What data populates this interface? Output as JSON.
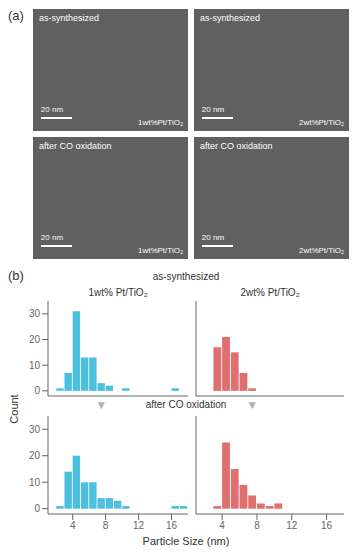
{
  "chart_data": [
    {
      "type": "bar",
      "title": "1wt% Pt/TiO₂",
      "subtitle": "as-synthesized",
      "ylabel": "Count",
      "x": [
        2.5,
        3.5,
        4.5,
        5.5,
        6.5,
        7.5,
        8.5,
        10.5,
        16.5
      ],
      "values": [
        1,
        7,
        31,
        13,
        13,
        3,
        2,
        1,
        1
      ],
      "color": "#4DBFDF",
      "xlim": [
        1,
        18
      ],
      "ylim": [
        -2,
        35
      ],
      "xticks": [
        4,
        8,
        12,
        16
      ],
      "yticks": [
        0,
        10,
        20,
        30
      ],
      "tick_labels": "y",
      "annotations": [
        "as-synthesized",
        "20 nm",
        "1wt%Pt/TiO₂",
        "▼"
      ]
    },
    {
      "type": "bar",
      "title": "2wt% Pt/TiO₂",
      "x": [
        3.5,
        4.5,
        5.5,
        6.5,
        7.5
      ],
      "values": [
        17,
        21,
        15,
        7,
        1
      ],
      "color": "#E07070",
      "xlim": [
        1,
        18
      ],
      "ylim": [
        -2,
        35
      ],
      "xticks": [
        4,
        8,
        12,
        16
      ],
      "yticks": [
        0,
        10,
        20,
        30
      ],
      "tick_labels": false,
      "annotations": [
        "as-synthesized",
        "20 nm",
        "2wt%Pt/TiO₂",
        "▼"
      ]
    },
    {
      "type": "bar",
      "subtitle": "after CO oxidation",
      "xlabel": "Particle Size (nm)",
      "x": [
        2.5,
        3.5,
        4.5,
        5.5,
        6.5,
        7.5,
        8.5,
        9.5,
        10.5,
        16.5,
        17.5
      ],
      "values": [
        1,
        14,
        20,
        10,
        10,
        4,
        4,
        3,
        1,
        1,
        1
      ],
      "color": "#4DBFDF",
      "xlim": [
        1,
        18
      ],
      "ylim": [
        -2,
        35
      ],
      "xticks": [
        4,
        8,
        12,
        16
      ],
      "yticks": [
        0,
        10,
        20,
        30
      ],
      "annotations": [
        "after CO oxidation",
        "20 nm",
        "1wt%Pt/TiO₂"
      ]
    },
    {
      "type": "bar",
      "x": [
        3.5,
        4.5,
        5.5,
        6.5,
        7.5,
        8.5,
        9.5,
        10.5
      ],
      "values": [
        1,
        25,
        15,
        9,
        5,
        2,
        1,
        2
      ],
      "color": "#E07070",
      "xlim": [
        1,
        18
      ],
      "ylim": [
        -2,
        35
      ],
      "xticks": [
        4,
        8,
        12,
        16
      ],
      "yticks": [
        0,
        10,
        20,
        30
      ],
      "tick_labels": "x",
      "annotations": [
        "after CO oxidation",
        "20 nm",
        "2wt%Pt/TiO₂"
      ]
    }
  ],
  "annotations": [
    "(a)",
    "(b)"
  ]
}
